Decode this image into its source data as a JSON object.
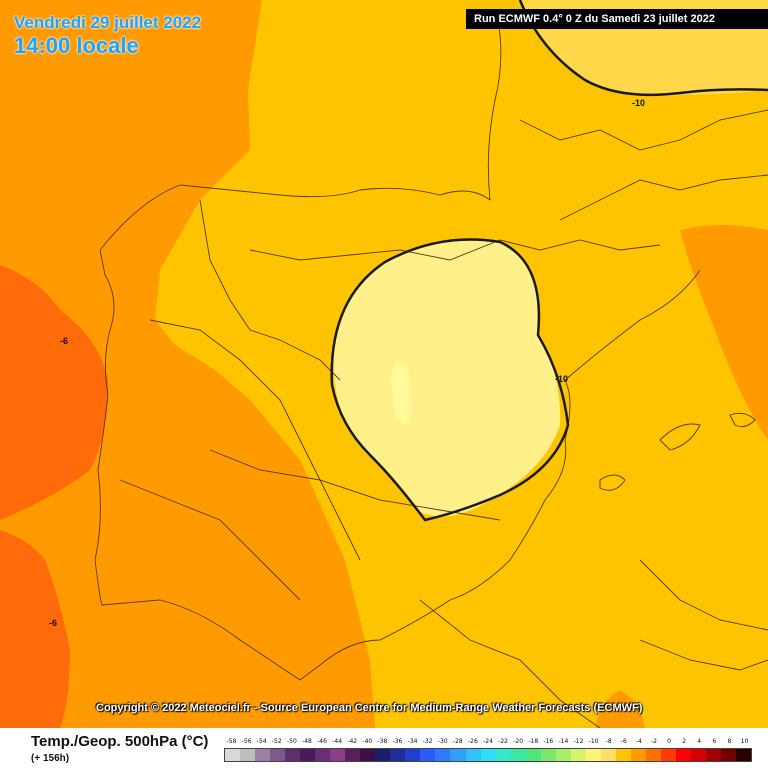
{
  "header": {
    "date_line": "Vendredi 29 juillet 2022",
    "time_line": "14:00 locale",
    "run_info": "Run ECMWF 0.4° 0 Z du Samedi 23 juillet 2022"
  },
  "copyright": "Copyright © 2022 Meteociel.fr - Source European Centre for Medium-Range Weather Forecasts (ECMWF)",
  "legend": {
    "title": "Temp./Geop. 500hPa (°C)",
    "subtitle": "(+ 156h)",
    "scale_labels": [
      "-58",
      "-56",
      "-54",
      "-52",
      "-50",
      "-48",
      "-46",
      "-44",
      "-42",
      "-40",
      "-38",
      "-36",
      "-34",
      "-32",
      "-30",
      "-28",
      "-26",
      "-24",
      "-22",
      "-20",
      "-18",
      "-16",
      "-14",
      "-12",
      "-10",
      "-8",
      "-6",
      "-4",
      "-2",
      "0",
      "2",
      "4",
      "6",
      "8",
      "10"
    ],
    "scale_colors": [
      "#d9d9d9",
      "#bdbdbd",
      "#9c7fa3",
      "#7e5a8c",
      "#5e2f6e",
      "#4a1a5a",
      "#6b2d7a",
      "#8a3d8e",
      "#5a1e5e",
      "#3d0f45",
      "#1c1c6b",
      "#1a2f9c",
      "#1f3fcf",
      "#2a5bff",
      "#2f7bff",
      "#2fa0ff",
      "#2fc3ff",
      "#2fe0f5",
      "#32e8c8",
      "#3ae8a0",
      "#4ae87a",
      "#7be86b",
      "#a8ef6a",
      "#d6f56a",
      "#fff27a",
      "#ffe066",
      "#ffc400",
      "#ff9a00",
      "#ff7000",
      "#ff3c00",
      "#ff0000",
      "#d60000",
      "#a30000",
      "#6e0000",
      "#2a0000"
    ]
  },
  "contours": {
    "labels": [
      "-10",
      "-10",
      "-6",
      "-6"
    ]
  },
  "colors": {
    "band_minus6_and_warmer": "#ff6a0a",
    "band_minus8": "#ff9a00",
    "band_minus10": "#ffc400",
    "band_minus12": "#fff08a",
    "band_minus14": "#fffa98",
    "coastline": "#5a3a10",
    "contour": "#1a1a1a"
  }
}
